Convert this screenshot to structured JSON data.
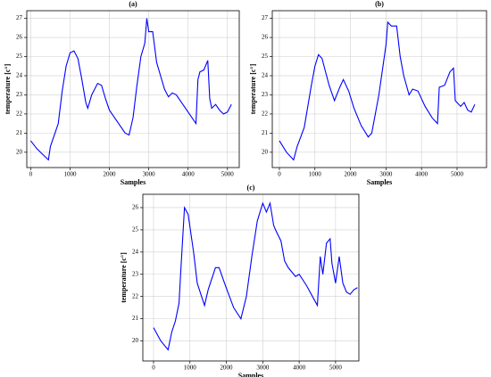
{
  "chart_data": [
    {
      "type": "line",
      "title": "(a)",
      "x_label": "Samples",
      "y_label": "temperature [c°]",
      "grid": true,
      "xlim": [
        -100,
        5300
      ],
      "ylim": [
        19.2,
        27.4
      ],
      "xticks": [
        0,
        1000,
        2000,
        3000,
        4000,
        5000
      ],
      "yticks": [
        20,
        21,
        22,
        23,
        24,
        25,
        26,
        27
      ],
      "x": [
        0,
        150,
        300,
        450,
        500,
        600,
        700,
        800,
        900,
        1000,
        1100,
        1200,
        1300,
        1400,
        1450,
        1550,
        1700,
        1800,
        1900,
        2000,
        2200,
        2400,
        2500,
        2600,
        2700,
        2800,
        2900,
        2950,
        3000,
        3100,
        3200,
        3300,
        3400,
        3500,
        3600,
        3700,
        3900,
        4100,
        4200,
        4250,
        4300,
        4400,
        4500,
        4550,
        4600,
        4700,
        4800,
        4900,
        5000,
        5100
      ],
      "series": [
        {
          "color": "#0000ff",
          "values": [
            20.6,
            20.2,
            19.9,
            19.6,
            20.3,
            20.9,
            21.5,
            23.2,
            24.5,
            25.2,
            25.3,
            24.9,
            23.8,
            22.6,
            22.3,
            23.0,
            23.6,
            23.5,
            22.8,
            22.2,
            21.6,
            21.0,
            20.9,
            21.8,
            23.5,
            25.0,
            25.7,
            27.0,
            26.3,
            26.3,
            24.7,
            24.0,
            23.3,
            22.9,
            23.1,
            23.0,
            22.4,
            21.8,
            21.5,
            23.8,
            24.2,
            24.3,
            24.8,
            22.8,
            22.3,
            22.5,
            22.2,
            22.0,
            22.1,
            22.5
          ]
        }
      ]
    },
    {
      "type": "line",
      "title": "(b)",
      "x_label": "Samples",
      "y_label": "temperature [c°]",
      "grid": true,
      "xlim": [
        -200,
        5830
      ],
      "ylim": [
        19.2,
        27.4
      ],
      "xticks": [
        0,
        1000,
        2000,
        3000,
        4000,
        5000
      ],
      "yticks": [
        20,
        21,
        22,
        23,
        24,
        25,
        26,
        27
      ],
      "x": [
        0,
        200,
        400,
        500,
        700,
        900,
        1000,
        1100,
        1200,
        1400,
        1550,
        1700,
        1800,
        1950,
        2100,
        2300,
        2500,
        2600,
        2800,
        3000,
        3050,
        3150,
        3300,
        3400,
        3500,
        3650,
        3750,
        3900,
        4100,
        4300,
        4450,
        4500,
        4650,
        4800,
        4900,
        4950,
        5100,
        5200,
        5300,
        5400,
        5500
      ],
      "series": [
        {
          "color": "#0000ff",
          "values": [
            20.6,
            20.0,
            19.6,
            20.3,
            21.3,
            23.5,
            24.5,
            25.1,
            24.9,
            23.5,
            22.7,
            23.4,
            23.8,
            23.2,
            22.3,
            21.4,
            20.8,
            21.0,
            23.0,
            25.6,
            26.8,
            26.6,
            26.6,
            25.0,
            24.0,
            23.0,
            23.3,
            23.2,
            22.4,
            21.8,
            21.5,
            23.4,
            23.5,
            24.2,
            24.4,
            22.7,
            22.4,
            22.6,
            22.2,
            22.1,
            22.5
          ]
        }
      ]
    },
    {
      "type": "line",
      "title": "(c)",
      "x_label": "Samples",
      "y_label": "temperature [c°]",
      "grid": true,
      "xlim": [
        -294,
        5640
      ],
      "ylim": [
        19.1,
        26.6
      ],
      "xticks": [
        0,
        1000,
        2000,
        3000,
        4000,
        5000
      ],
      "yticks": [
        20,
        21,
        22,
        23,
        24,
        25,
        26
      ],
      "x": [
        0,
        200,
        400,
        500,
        600,
        700,
        750,
        850,
        950,
        1100,
        1200,
        1400,
        1500,
        1700,
        1800,
        1950,
        2200,
        2400,
        2550,
        2700,
        2850,
        3000,
        3100,
        3200,
        3300,
        3350,
        3500,
        3600,
        3700,
        3900,
        4000,
        4200,
        4400,
        4500,
        4580,
        4650,
        4750,
        4850,
        4900,
        5000,
        5100,
        5200,
        5300,
        5400,
        5500,
        5600
      ],
      "series": [
        {
          "color": "#0000ff",
          "values": [
            20.6,
            20.0,
            19.6,
            20.4,
            20.9,
            21.7,
            23.2,
            26.0,
            25.7,
            24.0,
            22.6,
            21.6,
            22.3,
            23.3,
            23.3,
            22.6,
            21.5,
            21.0,
            22.0,
            23.8,
            25.4,
            26.2,
            25.8,
            26.2,
            25.2,
            25.0,
            24.5,
            23.6,
            23.3,
            22.9,
            23.0,
            22.5,
            21.9,
            21.6,
            23.8,
            23.0,
            24.4,
            24.6,
            23.5,
            22.6,
            23.8,
            22.6,
            22.2,
            22.1,
            22.3,
            22.4
          ]
        }
      ]
    }
  ]
}
